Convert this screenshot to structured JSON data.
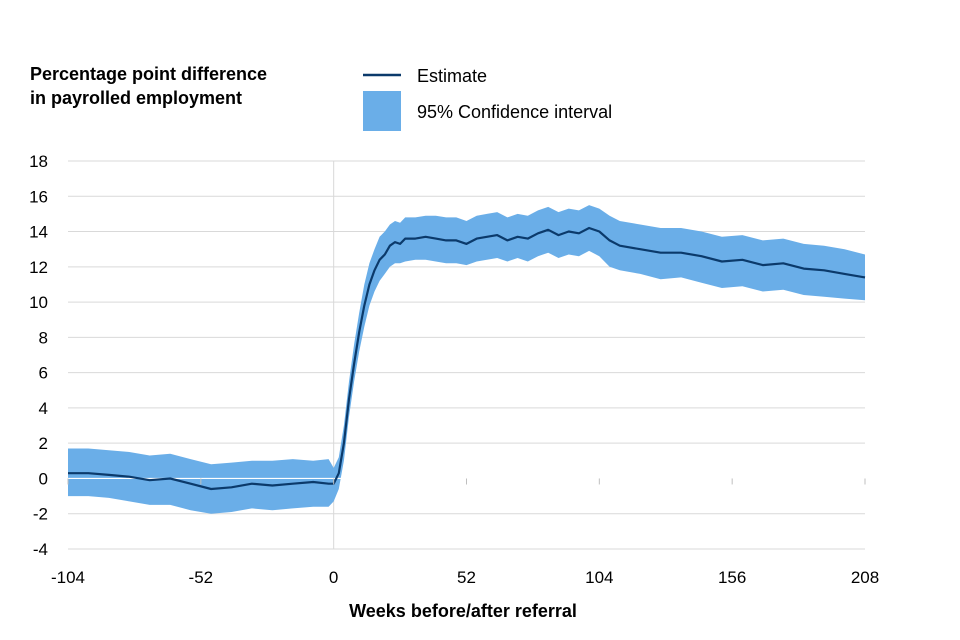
{
  "chart_data": {
    "type": "area",
    "ylabel": [
      "Percentage point difference",
      "in payrolled employment"
    ],
    "xlabel": "Weeks before/after referral",
    "x_ticks": [
      -104,
      -52,
      0,
      52,
      104,
      156,
      208
    ],
    "y_ticks": [
      -4,
      -2,
      0,
      2,
      4,
      6,
      8,
      10,
      12,
      14,
      16,
      18
    ],
    "xlim": [
      -104,
      208
    ],
    "ylim": [
      -4,
      18
    ],
    "grid": "horizontal",
    "legend_position": "top",
    "legend": [
      {
        "label": "Estimate",
        "kind": "line",
        "color": "#0b3a6b"
      },
      {
        "label": "95% Confidence interval",
        "kind": "area",
        "color": "#6aaee8"
      }
    ],
    "x": [
      -104,
      -96,
      -88,
      -80,
      -72,
      -64,
      -56,
      -48,
      -40,
      -32,
      -24,
      -16,
      -8,
      -2,
      0,
      2,
      4,
      6,
      8,
      10,
      12,
      14,
      16,
      18,
      20,
      22,
      24,
      26,
      28,
      32,
      36,
      40,
      44,
      48,
      52,
      56,
      60,
      64,
      68,
      72,
      76,
      80,
      84,
      88,
      92,
      96,
      100,
      104,
      108,
      112,
      120,
      128,
      136,
      144,
      152,
      160,
      168,
      176,
      184,
      192,
      200,
      208
    ],
    "series": [
      {
        "name": "Estimate",
        "values": [
          0.3,
          0.3,
          0.2,
          0.1,
          -0.1,
          0.0,
          -0.3,
          -0.6,
          -0.5,
          -0.3,
          -0.4,
          -0.3,
          -0.2,
          -0.3,
          -0.3,
          0.3,
          2.0,
          4.5,
          6.5,
          8.3,
          9.8,
          11.0,
          11.8,
          12.4,
          12.7,
          13.2,
          13.4,
          13.3,
          13.6,
          13.6,
          13.7,
          13.6,
          13.5,
          13.5,
          13.3,
          13.6,
          13.7,
          13.8,
          13.5,
          13.7,
          13.6,
          13.9,
          14.1,
          13.8,
          14.0,
          13.9,
          14.2,
          14.0,
          13.5,
          13.2,
          13.0,
          12.8,
          12.8,
          12.6,
          12.3,
          12.4,
          12.1,
          12.2,
          11.9,
          11.8,
          11.6,
          11.4
        ]
      },
      {
        "name": "95% Confidence interval",
        "lower": [
          -1.0,
          -1.0,
          -1.1,
          -1.3,
          -1.5,
          -1.5,
          -1.8,
          -2.0,
          -1.9,
          -1.7,
          -1.8,
          -1.7,
          -1.6,
          -1.6,
          -1.3,
          -0.6,
          1.0,
          3.5,
          5.5,
          7.2,
          8.6,
          9.8,
          10.6,
          11.2,
          11.6,
          12.0,
          12.2,
          12.2,
          12.3,
          12.4,
          12.4,
          12.3,
          12.2,
          12.2,
          12.1,
          12.3,
          12.4,
          12.5,
          12.3,
          12.5,
          12.3,
          12.6,
          12.8,
          12.5,
          12.7,
          12.6,
          12.9,
          12.6,
          12.0,
          11.8,
          11.6,
          11.3,
          11.4,
          11.1,
          10.8,
          10.9,
          10.6,
          10.7,
          10.4,
          10.3,
          10.2,
          10.1
        ],
        "upper": [
          1.7,
          1.7,
          1.6,
          1.5,
          1.3,
          1.4,
          1.1,
          0.8,
          0.9,
          1.0,
          1.0,
          1.1,
          1.0,
          1.1,
          0.6,
          1.2,
          3.0,
          5.5,
          7.6,
          9.4,
          11.0,
          12.2,
          13.0,
          13.7,
          14.0,
          14.4,
          14.6,
          14.5,
          14.8,
          14.8,
          14.9,
          14.9,
          14.8,
          14.8,
          14.6,
          14.9,
          15.0,
          15.1,
          14.8,
          15.0,
          14.9,
          15.2,
          15.4,
          15.1,
          15.3,
          15.2,
          15.5,
          15.3,
          14.9,
          14.6,
          14.4,
          14.2,
          14.2,
          14.0,
          13.7,
          13.8,
          13.5,
          13.6,
          13.3,
          13.2,
          13.0,
          12.7
        ]
      }
    ]
  },
  "colors": {
    "estimate": "#0b3a6b",
    "ci": "#6aaee8",
    "grid": "#d9d9d9",
    "zero_line": "#ffffff",
    "x0_line": "#d9d9d9"
  }
}
